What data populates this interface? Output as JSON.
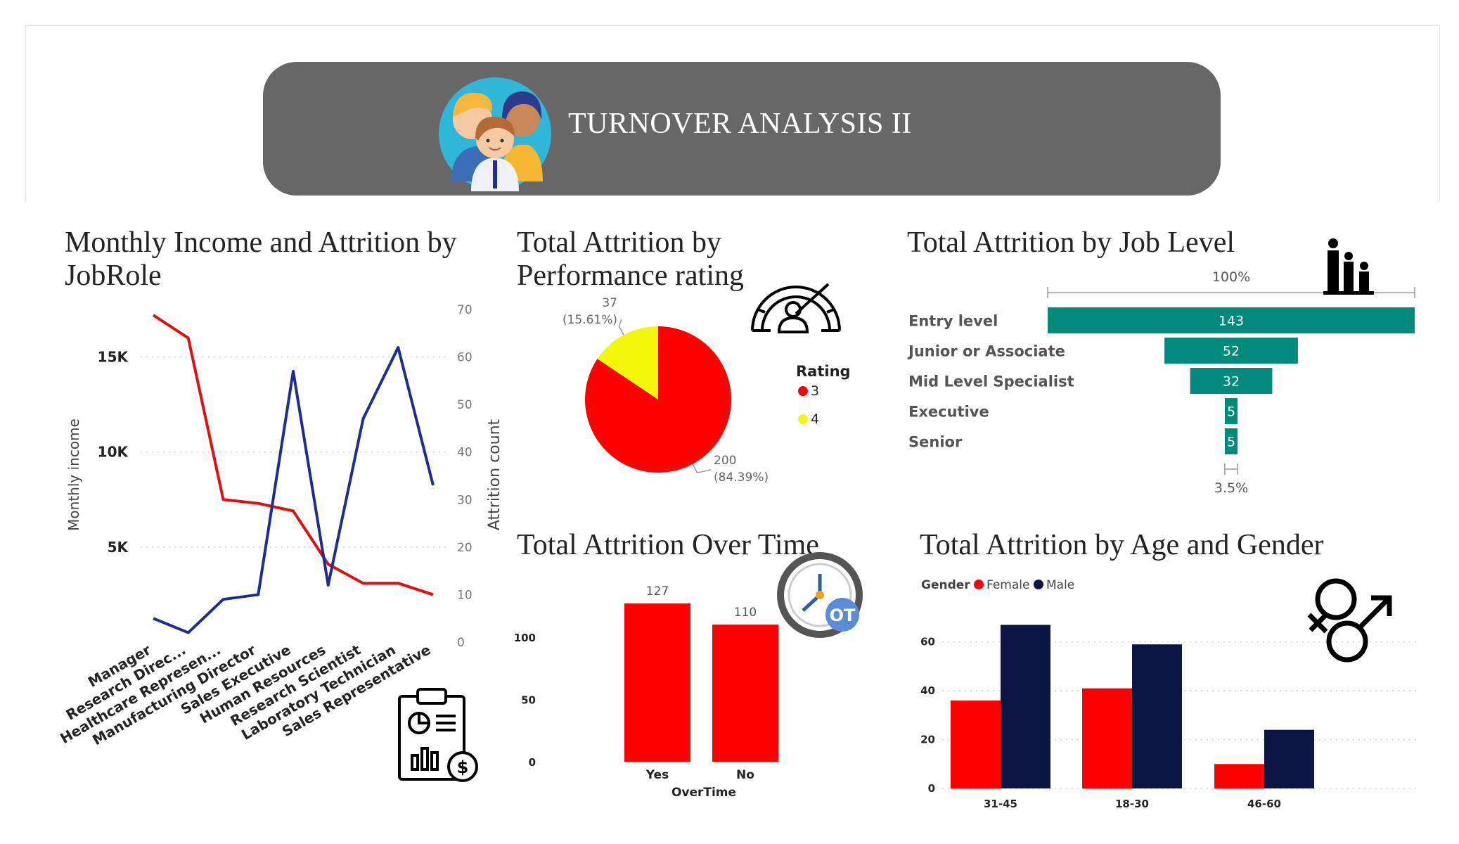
{
  "header": {
    "title": "TURNOVER ANALYSIS II"
  },
  "colors": {
    "red": "#ff0000",
    "navy": "#1f2d93",
    "darknavy": "#0d1544",
    "yellow": "#f4f70a",
    "teal": "#028a7d",
    "banner": "#676767"
  },
  "chart_data": [
    {
      "id": "income_jobrole",
      "type": "line",
      "title": "Monthly Income and Attrition by JobRole",
      "ylabel": "Monthly income",
      "y2label": "Attrition count",
      "categories": [
        "Manager",
        "Research Direc...",
        "Healthcare Represen...",
        "Manufacturing Director",
        "Sales Executive",
        "Human Resources",
        "Research Scientist",
        "Laboratory Technician",
        "Sales Representative"
      ],
      "y_ticks": [
        "15K",
        "10K",
        "5K"
      ],
      "y2_ticks": [
        "70",
        "60",
        "50",
        "40",
        "30",
        "20",
        "10",
        "0"
      ],
      "ylim": [
        0,
        17500
      ],
      "y2lim": [
        0,
        70
      ],
      "series": [
        {
          "name": "",
          "axis": "left",
          "color": "#e01010",
          "values": [
            17200,
            16000,
            7500,
            7300,
            6900,
            4100,
            3100,
            3100,
            2500
          ]
        },
        {
          "name": "",
          "axis": "right",
          "color": "#1f2d93",
          "values": [
            5,
            2,
            9,
            10,
            57,
            12,
            47,
            62,
            33
          ]
        }
      ]
    },
    {
      "id": "performance",
      "type": "pie",
      "title": "Total Attrition by Performance rating",
      "legend_title": "Rating",
      "slices": [
        {
          "label": "3",
          "value": 200,
          "pct": "(84.39%)",
          "color": "#ff0000"
        },
        {
          "label": "4",
          "value": 37,
          "pct": "(15.61%)",
          "color": "#f4f70a"
        }
      ]
    },
    {
      "id": "job_level",
      "type": "bar",
      "subtype": "funnel",
      "title": "Total Attrition by Job Level",
      "top_label": "100%",
      "bottom_label": "3.5%",
      "categories": [
        "Entry level",
        "Junior or Associate",
        "Mid Level Specialist",
        "Executive",
        "Senior"
      ],
      "values": [
        143,
        52,
        32,
        5,
        5
      ]
    },
    {
      "id": "overtime",
      "type": "bar",
      "title": "Total Attrition Over Time",
      "xlabel": "OverTime",
      "categories": [
        "Yes",
        "No"
      ],
      "values": [
        127,
        110
      ],
      "y_ticks": [
        "100",
        "50",
        "0"
      ],
      "ylim": [
        0,
        127
      ]
    },
    {
      "id": "age_gender",
      "type": "bar",
      "title": "Total Attrition by Age and Gender",
      "legend_title": "Gender",
      "categories": [
        "31-45",
        "18-30",
        "46-60"
      ],
      "y_ticks": [
        "60",
        "40",
        "20",
        "0"
      ],
      "ylim": [
        0,
        70
      ],
      "series": [
        {
          "name": "Female",
          "color": "#ff0000",
          "values": [
            36,
            41,
            10
          ]
        },
        {
          "name": "Male",
          "color": "#0d1544",
          "values": [
            67,
            59,
            24
          ]
        }
      ]
    }
  ]
}
